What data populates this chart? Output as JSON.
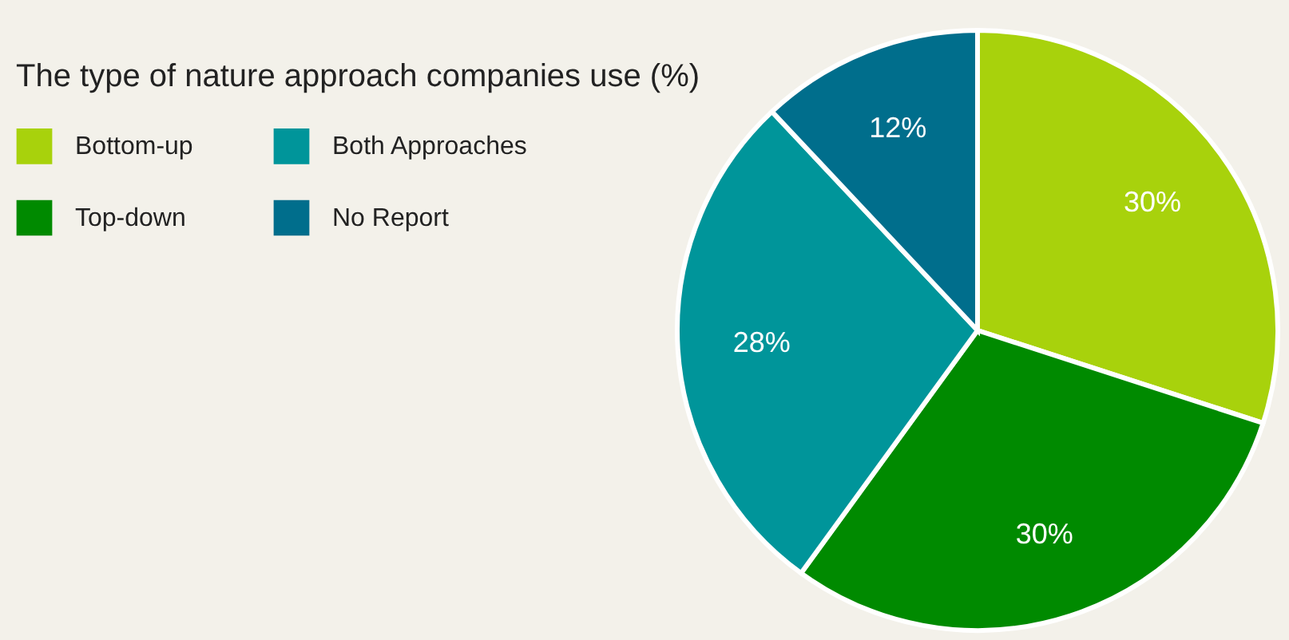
{
  "chart_data": {
    "type": "pie",
    "title": "The type of nature approach companies use (%)",
    "categories": [
      "Bottom-up",
      "Top-down",
      "Both Approaches",
      "No Report"
    ],
    "values": [
      30,
      30,
      28,
      12
    ],
    "value_labels": [
      "30%",
      "30%",
      "28%",
      "12%"
    ],
    "colors": [
      "#a8d20c",
      "#008a00",
      "#00959a",
      "#006e8c"
    ],
    "legend": "top left"
  }
}
